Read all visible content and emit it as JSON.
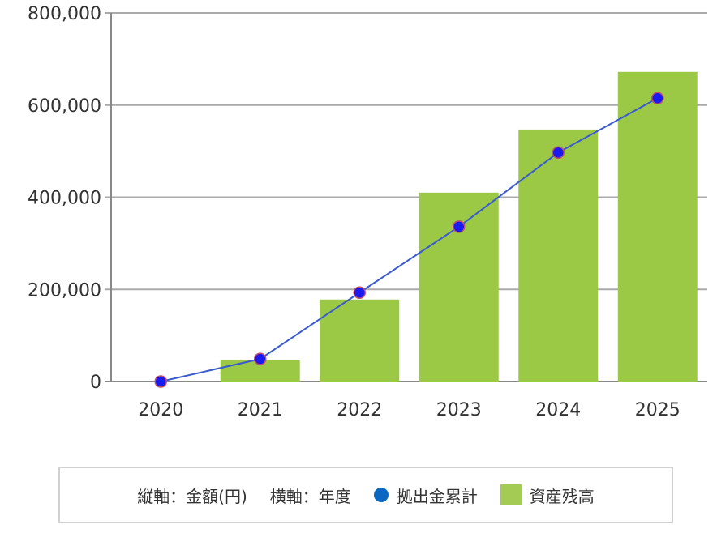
{
  "chart_data": {
    "type": "bar+line",
    "categories": [
      "2020",
      "2021",
      "2022",
      "2023",
      "2024",
      "2025"
    ],
    "series": [
      {
        "name": "資産残高",
        "type": "bar",
        "color": "#9bc845",
        "values": [
          0,
          46000,
          178000,
          410000,
          547000,
          672000
        ]
      },
      {
        "name": "拠出金累計",
        "type": "line",
        "color": "#1a1aee",
        "line_color": "#3a5bd0",
        "values": [
          0,
          49000,
          193000,
          336000,
          497000,
          615000
        ]
      }
    ],
    "y_ticks": [
      "0",
      "200,000",
      "400,000",
      "600,000",
      "800,000"
    ],
    "ylim": [
      0,
      800000
    ],
    "grid": true,
    "legend_position": "bottom",
    "legend": {
      "y_axis_note": "縦軸：金額(円)",
      "x_axis_note": "横軸：年度",
      "line_label": "拠出金累計",
      "bar_label": "資産残高"
    }
  }
}
